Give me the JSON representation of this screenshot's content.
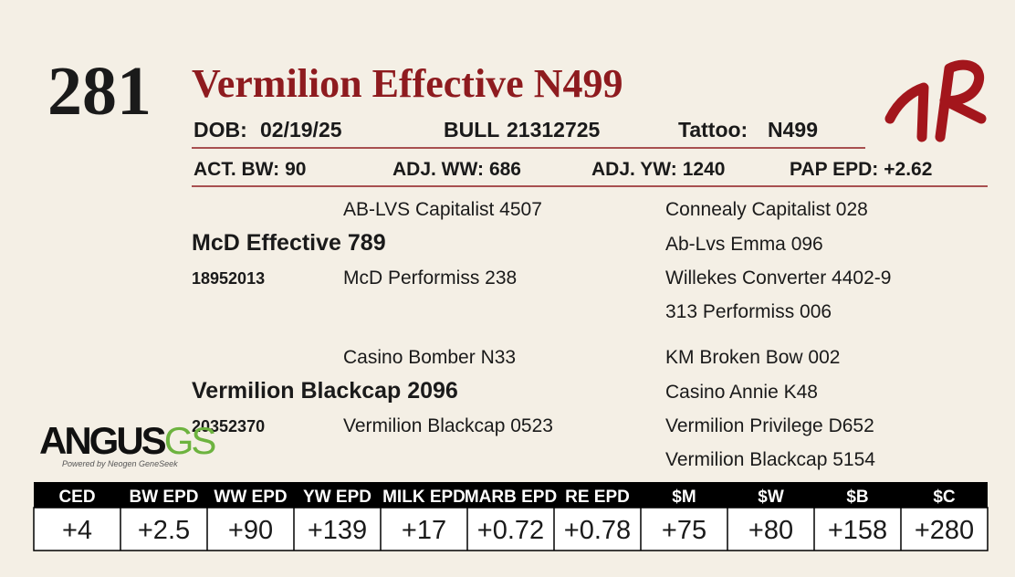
{
  "lot": "281",
  "name": "Vermilion Effective N499",
  "info": {
    "dob_label": "DOB:",
    "dob": "02/19/25",
    "sex": "BULL",
    "registration": "21312725",
    "tattoo_label": "Tattoo:",
    "tattoo": "N499"
  },
  "performance": [
    {
      "label": "ACT. BW:",
      "value": "90"
    },
    {
      "label": "ADJ. WW:",
      "value": "686"
    },
    {
      "label": "ADJ. YW:",
      "value": "1240"
    },
    {
      "label": "PAP EPD:",
      "value": "+2.62"
    }
  ],
  "pedigree": {
    "sire": {
      "name": "McD Effective 789",
      "registration": "18952013",
      "sire": "AB-LVS Capitalist 4507",
      "dam": "McD Performiss 238",
      "grandparents": [
        "Connealy Capitalist 028",
        "Ab-Lvs Emma 096",
        "Willekes Converter 4402-9",
        "313 Performiss 006"
      ]
    },
    "dam": {
      "name": "Vermilion Blackcap 2096",
      "registration": "20352370",
      "sire": "Casino Bomber N33",
      "dam": "Vermilion Blackcap 0523",
      "grandparents": [
        "KM Broken Bow 002",
        "Casino Annie K48",
        "Vermilion Privilege D652",
        "Vermilion Blackcap 5154"
      ]
    }
  },
  "logo": {
    "main": "ANGUS",
    "suffix": "GS",
    "tagline": "Powered by Neogen GeneSeek"
  },
  "epd_table": {
    "headers": [
      "CED",
      "BW EPD",
      "WW EPD",
      "YW EPD",
      "MILK EPD",
      "MARB EPD",
      "RE EPD",
      "$M",
      "$W",
      "$B",
      "$C"
    ],
    "values": [
      "+4",
      "+2.5",
      "+90",
      "+139",
      "+17",
      "+0.72",
      "+0.78",
      "+75",
      "+80",
      "+158",
      "+280"
    ]
  }
}
